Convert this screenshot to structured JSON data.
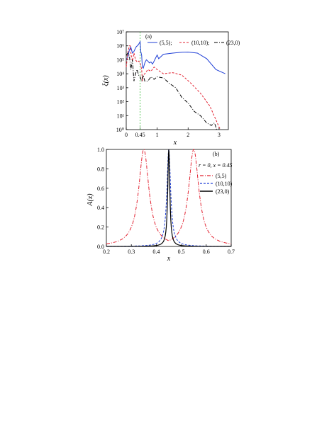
{
  "figure": {
    "colors": {
      "blue": "#1f3fd6",
      "red": "#e2202f",
      "black": "#000000",
      "green": "#33bb33"
    }
  },
  "chart_data": [
    {
      "panel": "(a)",
      "type": "line",
      "xlabel": "x",
      "ylabel": "ξ(x)",
      "xlim": [
        0,
        3.3
      ],
      "ylim": [
        1,
        10000000
      ],
      "yscale": "log",
      "xticks": [
        0,
        0.45,
        1,
        2,
        3
      ],
      "xtick_labels": [
        "0",
        "0.45",
        "1",
        "2",
        "3"
      ],
      "yticks": [
        1,
        10,
        100,
        1000,
        10000,
        100000,
        1000000,
        10000000
      ],
      "ytick_labels": [
        "10⁰",
        "10¹",
        "10²",
        "10³",
        "10⁴",
        "10⁵",
        "10⁶",
        "10⁷"
      ],
      "vline": {
        "x": 0.45,
        "style": "dashed",
        "color": "#33bb33"
      },
      "legend_position": "top",
      "series": [
        {
          "name": "(5,5);",
          "style": "solid",
          "color": "#1f3fd6",
          "x": [
            0,
            0.05,
            0.1,
            0.15,
            0.2,
            0.25,
            0.3,
            0.33,
            0.36,
            0.4,
            0.43,
            0.45,
            0.47,
            0.5,
            0.52,
            0.55,
            0.6,
            0.65,
            0.7,
            0.75,
            0.8,
            0.85,
            0.9,
            0.93,
            0.96,
            1.0,
            1.05,
            1.2,
            1.5,
            1.8,
            2.0,
            2.3,
            2.6,
            2.9,
            3.2
          ],
          "y": [
            100000,
            150000,
            500000,
            800000,
            300000,
            400000,
            700000,
            900000,
            1000000,
            1300000,
            1700000,
            2000000,
            400000,
            200000,
            30000,
            25000,
            60000,
            100000,
            80000,
            60000,
            70000,
            50000,
            80000,
            110000,
            150000,
            220000,
            120000,
            250000,
            300000,
            350000,
            360000,
            300000,
            120000,
            20000,
            10000
          ]
        },
        {
          "name": "(10,10);",
          "style": "dashed",
          "color": "#e2202f",
          "x": [
            0,
            0.05,
            0.1,
            0.13,
            0.16,
            0.2,
            0.25,
            0.3,
            0.35,
            0.4,
            0.45,
            0.5,
            0.52,
            0.55,
            0.6,
            0.7,
            0.8,
            0.9,
            1.0,
            1.2,
            1.5,
            1.8,
            2.1,
            2.4,
            2.7,
            2.9,
            3.0,
            3.05
          ],
          "y": [
            30000,
            300000,
            1000000,
            1000000,
            200000,
            80000,
            300000,
            100000,
            70000,
            80000,
            60000,
            20000,
            3000,
            8000,
            10000,
            20000,
            15000,
            30000,
            20000,
            10000,
            12000,
            8000,
            2000,
            400,
            50,
            5,
            1.5,
            1
          ]
        },
        {
          "name": "(23,0)",
          "style": "dashdot",
          "color": "#000000",
          "x": [
            0,
            0.05,
            0.1,
            0.15,
            0.2,
            0.25,
            0.3,
            0.35,
            0.4,
            0.45,
            0.5,
            0.55,
            0.6,
            0.7,
            0.8,
            0.9,
            1.0,
            1.2,
            1.4,
            1.6,
            1.8,
            2.0,
            2.2,
            2.4,
            2.6,
            2.75,
            2.85,
            2.9,
            2.92
          ],
          "y": [
            200000,
            300000,
            200000,
            20000,
            100000,
            3000,
            10000,
            20000,
            8000,
            6000,
            3000,
            8000,
            3000,
            3000,
            6000,
            4000,
            6000,
            5000,
            2000,
            1000,
            200,
            80,
            20,
            10,
            3,
            2,
            3,
            1.5,
            1
          ]
        }
      ]
    },
    {
      "panel": "(b)",
      "type": "line",
      "xlabel": "x",
      "ylabel": "A(x)",
      "xlim": [
        0.2,
        0.7
      ],
      "ylim": [
        0,
        1
      ],
      "xticks": [
        0.2,
        0.3,
        0.4,
        0.5,
        0.6,
        0.7
      ],
      "xtick_labels": [
        "0.2",
        "0.3",
        "0.4",
        "0.5",
        "0.6",
        "0.7"
      ],
      "yticks": [
        0,
        0.2,
        0.4,
        0.6,
        0.8,
        1.0
      ],
      "ytick_labels": [
        "0.0",
        "0.2",
        "0.4",
        "0.6",
        "0.8",
        "1.0"
      ],
      "annotation": "r = 0,  x = 0.45",
      "legend_position": "right",
      "series": [
        {
          "name": "(5,5)",
          "style": "dashdot",
          "color": "#e2202f",
          "peaks": [
            0.35,
            0.55
          ],
          "width": 0.025
        },
        {
          "name": "(10,10)",
          "style": "dashed",
          "color": "#1f3fd6",
          "peaks": [
            0.45
          ],
          "width": 0.009
        },
        {
          "name": "(23,0)",
          "style": "solid",
          "color": "#000000",
          "peaks": [
            0.45
          ],
          "width": 0.005
        }
      ]
    }
  ]
}
